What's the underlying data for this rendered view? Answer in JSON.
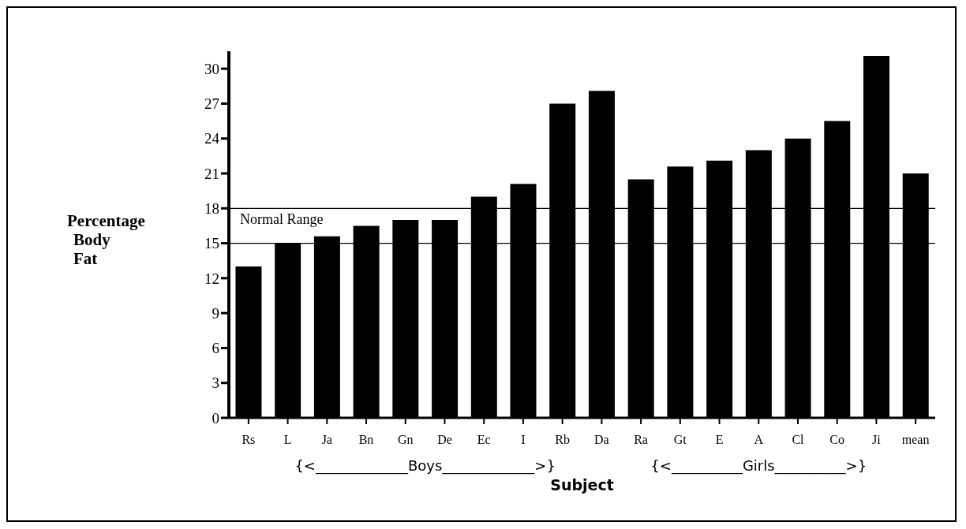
{
  "chart_data": {
    "type": "bar",
    "categories": [
      "Rs",
      "L",
      "Ja",
      "Bn",
      "Gn",
      "De",
      "Ec",
      "I",
      "Rb",
      "Da",
      "Ra",
      "Gt",
      "E",
      "A",
      "Cl",
      "Co",
      "Ji",
      "mean"
    ],
    "values": [
      13,
      15,
      15.6,
      16.5,
      17,
      17,
      19,
      20.1,
      27,
      28.1,
      20.5,
      21.6,
      22.1,
      23,
      24,
      25.5,
      31.1,
      21
    ],
    "color": "#000000",
    "ylim": [
      0,
      31.5
    ],
    "yticks": [
      0,
      3,
      6,
      9,
      12,
      15,
      18,
      21,
      24,
      27,
      30
    ],
    "xlabel": "Subject",
    "ylabel": "Percentage Body Fat",
    "ref_lines": [
      {
        "axis": "y",
        "value": 18,
        "label": "Normal Range"
      },
      {
        "axis": "y",
        "value": 15
      }
    ],
    "annotations": [
      "{<_____________Boys_____________>}",
      "{<__________Girls__________>}"
    ],
    "legend": false
  }
}
